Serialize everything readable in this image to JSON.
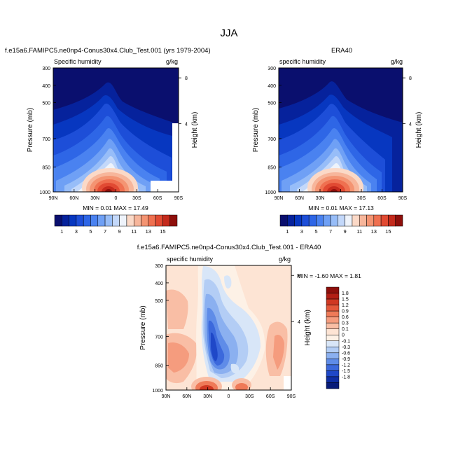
{
  "figure_title": "JJA",
  "chart_data": [
    {
      "type": "heatmap",
      "title": "f.e15a6.FAMIPC5.ne0np4-Conus30x4.Club_Test.001 (yrs 1979-2004)",
      "variable": "Specific humidity",
      "units": "g/kg",
      "xlabel": "",
      "ylabel": "Pressure (mb)",
      "right_label": "Height (km)",
      "x_ticks": [
        "90N",
        "60N",
        "30N",
        "0",
        "30S",
        "60S",
        "90S"
      ],
      "y_ticks": [
        "300",
        "400",
        "500",
        "700",
        "850",
        "1000"
      ],
      "right_ticks": [
        "8",
        "4"
      ],
      "stats_text": "MIN =  0.01  MAX =  17.49",
      "min": 0.01,
      "max": 17.49
    },
    {
      "type": "heatmap",
      "title": "ERA40",
      "variable": "specific humidity",
      "units": "g/kg",
      "xlabel": "",
      "ylabel": "Pressure (mb)",
      "right_label": "Height (km)",
      "x_ticks": [
        "90N",
        "60N",
        "30N",
        "0",
        "30S",
        "60S",
        "90S"
      ],
      "y_ticks": [
        "300",
        "400",
        "500",
        "700",
        "850",
        "1000"
      ],
      "right_ticks": [
        "8",
        "4"
      ],
      "stats_text": "MIN =  0.01  MAX =  17.13",
      "min": 0.01,
      "max": 17.13
    },
    {
      "type": "heatmap",
      "title": "f.e15a6.FAMIPC5.ne0np4-Conus30x4.Club_Test.001 - ERA40",
      "variable": "specific humidity",
      "units": "g/kg",
      "xlabel": "",
      "ylabel": "Pressure (mb)",
      "right_label": "Height (km)",
      "x_ticks": [
        "90N",
        "60N",
        "30N",
        "0",
        "30S",
        "60S",
        "90S"
      ],
      "y_ticks": [
        "300",
        "400",
        "500",
        "700",
        "850",
        "1000"
      ],
      "right_ticks": [
        "8",
        "4"
      ],
      "stats_text": "MIN =  -1.60  MAX =  1.81",
      "min": -1.6,
      "max": 1.81
    }
  ],
  "colorbar_abs": {
    "labels": [
      "1",
      "3",
      "5",
      "7",
      "9",
      "11",
      "13",
      "15"
    ],
    "colors": [
      "#0a0f6e",
      "#06229c",
      "#0737c0",
      "#1d4ed8",
      "#2e66e6",
      "#4a82f0",
      "#6fa0f5",
      "#97bdf8",
      "#c3d8fa",
      "#eef3fb",
      "#fbd9c7",
      "#f7b69b",
      "#f49472",
      "#ef7050",
      "#e14a32",
      "#c42a1c",
      "#8e0f0b"
    ]
  },
  "colorbar_diff": {
    "labels": [
      "1.8",
      "1.5",
      "1.2",
      "0.9",
      "0.6",
      "0.3",
      "0.1",
      "0",
      "-0.1",
      "-0.3",
      "-0.6",
      "-0.9",
      "-1.2",
      "-1.5",
      "-1.8"
    ],
    "colors": [
      "#8e0f0b",
      "#b21e14",
      "#d03822",
      "#e4583a",
      "#ef7a58",
      "#f59c7e",
      "#f9bea5",
      "#fde4d4",
      "#fdf1e6",
      "#d8e6f8",
      "#b3cdf5",
      "#8bb0f0",
      "#5f8ce8",
      "#3c69dc",
      "#1f48c8",
      "#0f2ea4",
      "#081b78"
    ]
  }
}
